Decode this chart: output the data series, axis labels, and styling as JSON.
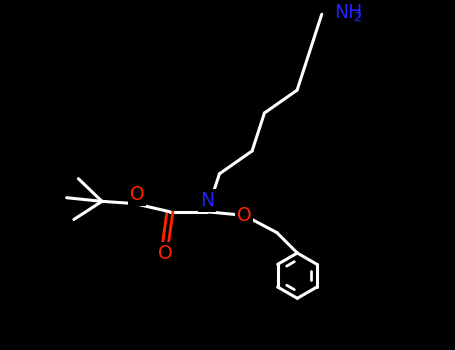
{
  "bg_color": "#000000",
  "line_color": "#ffffff",
  "n_color": "#2222ff",
  "o_color": "#ff2200",
  "nh2_color": "#2222ff",
  "lw": 2.2,
  "xlim": [
    0,
    10
  ],
  "ylim": [
    0,
    7.7
  ],
  "figw": 4.55,
  "figh": 3.5,
  "dpi": 100
}
